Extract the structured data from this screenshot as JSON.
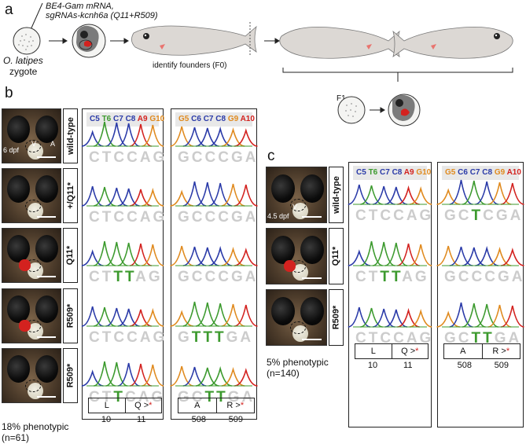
{
  "panel_a": {
    "letter": "a",
    "reagent_line1": "BE4-Gam mRNA,",
    "reagent_line2": "sgRNAs-kcnh6a (Q11+R509)",
    "species": "O. latipes",
    "stage": "zygote",
    "identify_label": "identify founders (F0)",
    "f1_label": "F1"
  },
  "panel_b": {
    "letter": "b",
    "rows": [
      {
        "label": "wild-type",
        "stage_label": "6 dpf",
        "v_label": "V",
        "a_label": "A",
        "seq1": [
          "C",
          "T",
          "C",
          "C",
          "A",
          "G"
        ],
        "mut1": [],
        "seq2": [
          "G",
          "C",
          "C",
          "C",
          "G",
          "A"
        ],
        "mut2": []
      },
      {
        "label": "+/Q11*",
        "seq1": [
          "C",
          "T",
          "C",
          "C",
          "A",
          "G"
        ],
        "mut1": [],
        "seq2": [
          "G",
          "C",
          "C",
          "C",
          "G",
          "A"
        ],
        "mut2": []
      },
      {
        "label": "Q11*",
        "seq1": [
          "C",
          "T",
          "T",
          "T",
          "A",
          "G"
        ],
        "mut1": [
          2,
          3
        ],
        "seq2": [
          "G",
          "C",
          "C",
          "C",
          "G",
          "A"
        ],
        "mut2": []
      },
      {
        "label": "R509*",
        "seq1": [
          "C",
          "T",
          "C",
          "C",
          "A",
          "G"
        ],
        "mut1": [],
        "seq2": [
          "G",
          "T",
          "T",
          "T",
          "G",
          "A"
        ],
        "mut2": [
          1,
          2,
          3
        ]
      },
      {
        "label": "R509*",
        "seq1": [
          "C",
          "T",
          "T",
          "C",
          "A",
          "G"
        ],
        "mut1": [
          2
        ],
        "seq2": [
          "G",
          "C",
          "T",
          "T",
          "G",
          "A"
        ],
        "mut2": [
          2,
          3
        ]
      }
    ],
    "header1": [
      {
        "t": "C5",
        "c": "#2a3aa8"
      },
      {
        "t": "T6",
        "c": "#3c9a2e"
      },
      {
        "t": "C7",
        "c": "#2a3aa8"
      },
      {
        "t": "C8",
        "c": "#2a3aa8"
      },
      {
        "t": "A9",
        "c": "#d3221f"
      },
      {
        "t": "G10",
        "c": "#e08a1e"
      }
    ],
    "header2": [
      {
        "t": "G5",
        "c": "#e08a1e"
      },
      {
        "t": "C6",
        "c": "#2a3aa8"
      },
      {
        "t": "C7",
        "c": "#2a3aa8"
      },
      {
        "t": "C8",
        "c": "#2a3aa8"
      },
      {
        "t": "G9",
        "c": "#e08a1e"
      },
      {
        "t": "A10",
        "c": "#d3221f"
      }
    ],
    "codon1": {
      "left": "L",
      "right": "Q >",
      "pos_left": "10",
      "pos_right": "11"
    },
    "codon2": {
      "left": "A",
      "right": "R >",
      "pos_left": "508",
      "pos_right": "509"
    },
    "footer_line1": "18% phenotypic",
    "footer_line2": "(n=61)"
  },
  "panel_c": {
    "letter": "c",
    "rows": [
      {
        "label": "wild-type",
        "stage_label": "4.5 dpf",
        "v_label": "V",
        "seq1": [
          "C",
          "T",
          "C",
          "C",
          "A",
          "G"
        ],
        "mut1": [],
        "seq2": [
          "G",
          "C",
          "T",
          "C",
          "G",
          "A"
        ],
        "mut2": [
          2
        ]
      },
      {
        "label": "Q11*",
        "seq1": [
          "C",
          "T",
          "T",
          "T",
          "A",
          "G"
        ],
        "mut1": [
          2,
          3
        ],
        "seq2": [
          "G",
          "C",
          "C",
          "C",
          "G",
          "A"
        ],
        "mut2": []
      },
      {
        "label": "R509*",
        "seq1": [
          "C",
          "T",
          "C",
          "C",
          "A",
          "G"
        ],
        "mut1": [],
        "seq2": [
          "G",
          "C",
          "T",
          "T",
          "G",
          "A"
        ],
        "mut2": [
          2,
          3
        ]
      }
    ],
    "codon1": {
      "left": "L",
      "right": "Q >",
      "pos_left": "10",
      "pos_right": "11"
    },
    "codon2": {
      "left": "A",
      "right": "R >",
      "pos_left": "508",
      "pos_right": "509"
    },
    "footer_line1": "5% phenotypic",
    "footer_line2": "(n=140)"
  },
  "star_symbol": "*",
  "colors": {
    "C": "#2a3aa8",
    "T": "#3c9a2e",
    "A": "#d3221f",
    "G": "#e08a1e",
    "mutant_base": "#3c9a2e",
    "seq_grey": "#cccccc",
    "heart_red": "#d3221f"
  }
}
